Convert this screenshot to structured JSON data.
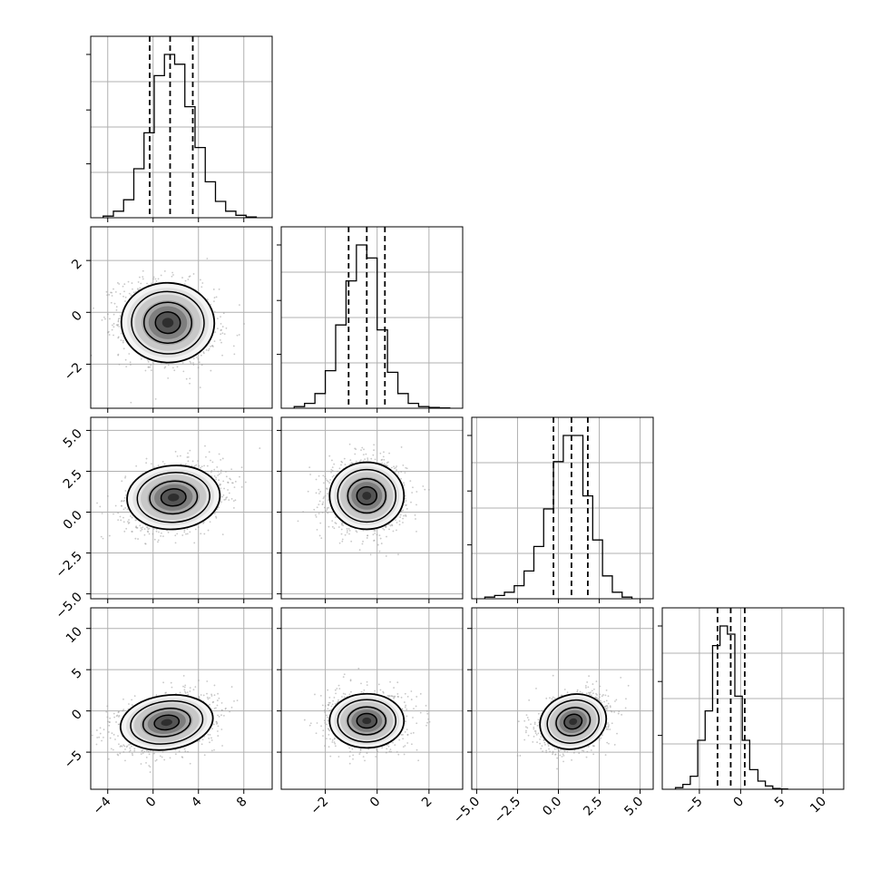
{
  "chart_data": {
    "type": "corner",
    "colors": {
      "line": "#000000",
      "grid": "#b0b0b0",
      "scatter": "#9a9a9a",
      "background": "#ffffff"
    },
    "grid": true,
    "parameters": [
      {
        "range": [
          -5.5,
          10.5
        ],
        "ticks": [
          -4,
          0,
          4,
          8
        ],
        "tick_labels": [
          "−4",
          "0",
          "4",
          "8"
        ],
        "quantiles": [
          -0.3,
          1.5,
          3.5
        ],
        "median": 1.5,
        "sigma": 2.0
      },
      {
        "range": [
          -3.7,
          3.3
        ],
        "ticks": [
          -2,
          0,
          2
        ],
        "tick_labels": [
          "−2",
          "0",
          "2"
        ],
        "quantiles": [
          -1.1,
          -0.4,
          0.3
        ],
        "median": -0.4,
        "sigma": 0.7
      },
      {
        "range": [
          -5.3,
          5.8
        ],
        "ticks": [
          -5.0,
          -2.5,
          0.0,
          2.5,
          5.0
        ],
        "tick_labels": [
          "−5.0",
          "−2.5",
          "0.0",
          "2.5",
          "5.0"
        ],
        "quantiles": [
          -0.3,
          0.8,
          1.8
        ],
        "median": 0.8,
        "sigma": 1.0
      },
      {
        "range": [
          -9.5,
          12.5
        ],
        "ticks": [
          -5,
          0,
          5,
          10
        ],
        "tick_labels": [
          "−5",
          "0",
          "5",
          "10"
        ],
        "quantiles": [
          -2.8,
          -1.2,
          0.5
        ],
        "median": -1.2,
        "sigma": 1.6
      }
    ],
    "histograms": [
      {
        "param": 0,
        "bin_edges": [
          -4.4,
          -3.5,
          -2.6,
          -1.7,
          -0.8,
          0.1,
          1.0,
          1.9,
          2.8,
          3.7,
          4.6,
          5.5,
          6.4,
          7.3,
          8.2,
          9.1
        ],
        "counts": [
          0.01,
          0.04,
          0.11,
          0.3,
          0.52,
          0.87,
          1.0,
          0.94,
          0.68,
          0.43,
          0.22,
          0.1,
          0.04,
          0.015,
          0.005
        ]
      },
      {
        "param": 1,
        "bin_edges": [
          -3.2,
          -2.8,
          -2.4,
          -2.0,
          -1.6,
          -1.2,
          -0.8,
          -0.4,
          0.0,
          0.4,
          0.8,
          1.2,
          1.6,
          2.0,
          2.4,
          2.8
        ],
        "counts": [
          0.01,
          0.03,
          0.09,
          0.23,
          0.51,
          0.78,
          1.0,
          0.92,
          0.48,
          0.22,
          0.09,
          0.03,
          0.01,
          0.005,
          0.002
        ]
      },
      {
        "param": 2,
        "bin_edges": [
          -4.5,
          -3.9,
          -3.3,
          -2.7,
          -2.1,
          -1.5,
          -0.9,
          -0.3,
          0.3,
          0.9,
          1.5,
          2.1,
          2.7,
          3.3,
          3.9,
          4.5
        ],
        "counts": [
          0.01,
          0.02,
          0.04,
          0.08,
          0.17,
          0.32,
          0.55,
          0.84,
          1.0,
          1.0,
          0.63,
          0.36,
          0.14,
          0.04,
          0.01
        ]
      },
      {
        "param": 3,
        "bin_edges": [
          -7.9,
          -7.0,
          -6.1,
          -5.2,
          -4.3,
          -3.4,
          -2.5,
          -1.6,
          -0.7,
          0.2,
          1.1,
          2.1,
          3.0,
          3.9,
          4.8,
          5.7
        ],
        "counts": [
          0.01,
          0.03,
          0.08,
          0.3,
          0.48,
          0.88,
          1.0,
          0.95,
          0.57,
          0.3,
          0.12,
          0.05,
          0.02,
          0.005,
          0.002
        ]
      }
    ],
    "density_panels": [
      {
        "x_param": 0,
        "y_param": 1,
        "peak": [
          1.3,
          -0.4
        ],
        "sigma": [
          2.0,
          0.75
        ],
        "rho": -0.15,
        "contour_levels": [
          0.55,
          1.05,
          1.6,
          2.05
        ]
      },
      {
        "x_param": 0,
        "y_param": 2,
        "peak": [
          1.8,
          0.9
        ],
        "sigma": [
          2.0,
          0.95
        ],
        "rho": 0.25,
        "contour_levels": [
          0.55,
          1.05,
          1.6,
          2.05
        ]
      },
      {
        "x_param": 1,
        "y_param": 2,
        "peak": [
          -0.4,
          1.0
        ],
        "sigma": [
          0.7,
          1.0
        ],
        "rho": 0.0,
        "contour_levels": [
          0.55,
          1.05,
          1.6,
          2.05
        ]
      },
      {
        "x_param": 0,
        "y_param": 3,
        "peak": [
          1.2,
          -1.4
        ],
        "sigma": [
          2.0,
          1.6
        ],
        "rho": 0.3,
        "contour_levels": [
          0.55,
          1.05,
          1.6,
          2.05
        ]
      },
      {
        "x_param": 1,
        "y_param": 3,
        "peak": [
          -0.4,
          -1.2
        ],
        "sigma": [
          0.7,
          1.6
        ],
        "rho": 0.0,
        "contour_levels": [
          0.55,
          1.05,
          1.6,
          2.05
        ]
      },
      {
        "x_param": 2,
        "y_param": 3,
        "peak": [
          0.9,
          -1.3
        ],
        "sigma": [
          1.0,
          1.6
        ],
        "rho": 0.3,
        "contour_levels": [
          0.55,
          1.05,
          1.6,
          2.05
        ]
      }
    ]
  }
}
